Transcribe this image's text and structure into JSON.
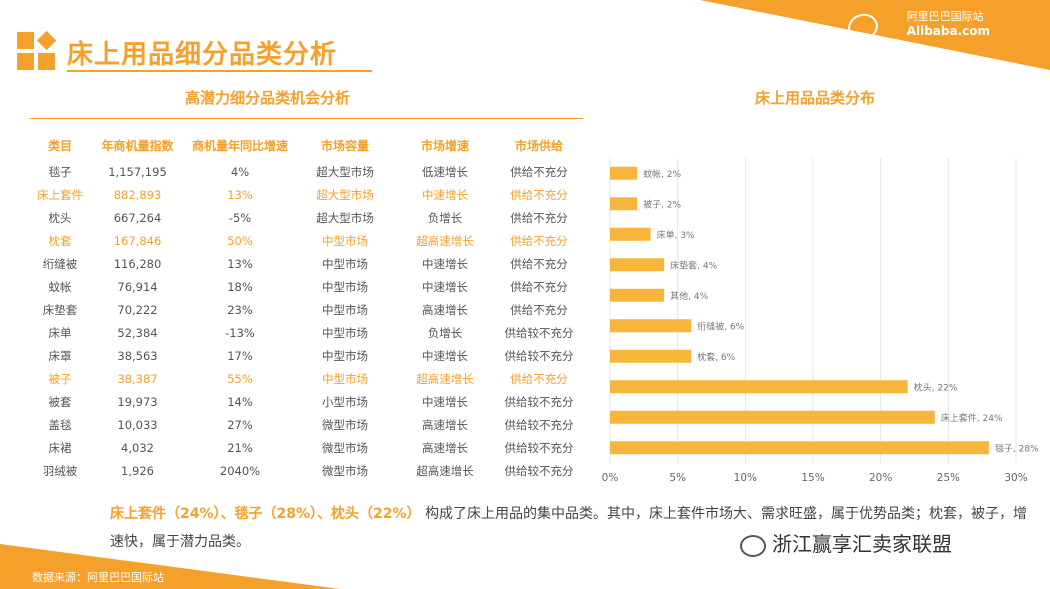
{
  "header": {
    "title": "床上用品细分品类分析",
    "logo_cn": "阿里巴巴国际站",
    "logo_en": "Alibaba.com"
  },
  "table": {
    "title": "高潜力细分品类机会分析",
    "columns": [
      "类目",
      "年商机量指数",
      "商机量年同比增速",
      "市场容量",
      "市场增速",
      "市场供给"
    ],
    "rows": [
      {
        "highlight": false,
        "cells": [
          "毯子",
          "1,157,195",
          "4%",
          "超大型市场",
          "低速增长",
          "供给不充分"
        ]
      },
      {
        "highlight": true,
        "cells": [
          "床上套件",
          "882,893",
          "13%",
          "超大型市场",
          "中速增长",
          "供给不充分"
        ]
      },
      {
        "highlight": false,
        "cells": [
          "枕头",
          "667,264",
          "-5%",
          "超大型市场",
          "负增长",
          "供给不充分"
        ]
      },
      {
        "highlight": true,
        "cells": [
          "枕套",
          "167,846",
          "50%",
          "中型市场",
          "超高速增长",
          "供给不充分"
        ]
      },
      {
        "highlight": false,
        "cells": [
          "绗缝被",
          "116,280",
          "13%",
          "中型市场",
          "中速增长",
          "供给不充分"
        ]
      },
      {
        "highlight": false,
        "cells": [
          "蚊帐",
          "76,914",
          "18%",
          "中型市场",
          "中速增长",
          "供给不充分"
        ]
      },
      {
        "highlight": false,
        "cells": [
          "床垫套",
          "70,222",
          "23%",
          "中型市场",
          "高速增长",
          "供给不充分"
        ]
      },
      {
        "highlight": false,
        "cells": [
          "床单",
          "52,384",
          "-13%",
          "中型市场",
          "负增长",
          "供给较不充分"
        ]
      },
      {
        "highlight": false,
        "cells": [
          "床罩",
          "38,563",
          "17%",
          "中型市场",
          "中速增长",
          "供给较不充分"
        ]
      },
      {
        "highlight": true,
        "cells": [
          "被子",
          "38,387",
          "55%",
          "中型市场",
          "超高速增长",
          "供给不充分"
        ]
      },
      {
        "highlight": false,
        "cells": [
          "被套",
          "19,973",
          "14%",
          "小型市场",
          "中速增长",
          "供给较不充分"
        ]
      },
      {
        "highlight": false,
        "cells": [
          "盖毯",
          "10,033",
          "27%",
          "微型市场",
          "高速增长",
          "供给较不充分"
        ]
      },
      {
        "highlight": false,
        "cells": [
          "床裙",
          "4,032",
          "21%",
          "微型市场",
          "高速增长",
          "供给较不充分"
        ]
      },
      {
        "highlight": false,
        "cells": [
          "羽绒被",
          "1,926",
          "2040%",
          "微型市场",
          "超高速增长",
          "供给较不充分"
        ]
      }
    ]
  },
  "chart_title": "床上用品品类分布",
  "chart_data": {
    "type": "bar",
    "orientation": "horizontal",
    "categories": [
      "蚊帐",
      "被子",
      "床单",
      "床垫套",
      "其他",
      "绗缝被",
      "枕套",
      "枕头",
      "床上套件",
      "毯子"
    ],
    "values": [
      2,
      2,
      3,
      4,
      4,
      6,
      6,
      22,
      24,
      28
    ],
    "data_labels": [
      "蚊帐, 2%",
      "被子, 2%",
      "床单, 3%",
      "床垫套, 4%",
      "其他, 4%",
      "绗缝被, 6%",
      "枕套, 6%",
      "枕头, 22%",
      "床上套件, 24%",
      "毯子, 28%"
    ],
    "xlim": [
      0,
      30
    ],
    "xticks": [
      "0%",
      "5%",
      "10%",
      "15%",
      "20%",
      "25%",
      "30%"
    ],
    "grid": true,
    "bar_color": "#f7b53c",
    "grid_color": "#e6e6e6"
  },
  "summary": {
    "highlight": "床上套件（24%）、毯子（28%）、枕头（22%）",
    "text": "构成了床上用品的集中品类。其中，床上套件市场大、需求旺盛，属于优势品类；枕套，被子，增速快，属于潜力品类。"
  },
  "footer": {
    "source": "数据来源：阿里巴巴国际站",
    "watermark": "浙江赢享汇卖家联盟"
  },
  "colors": {
    "accent": "#f5a02a",
    "text": "#555555"
  }
}
